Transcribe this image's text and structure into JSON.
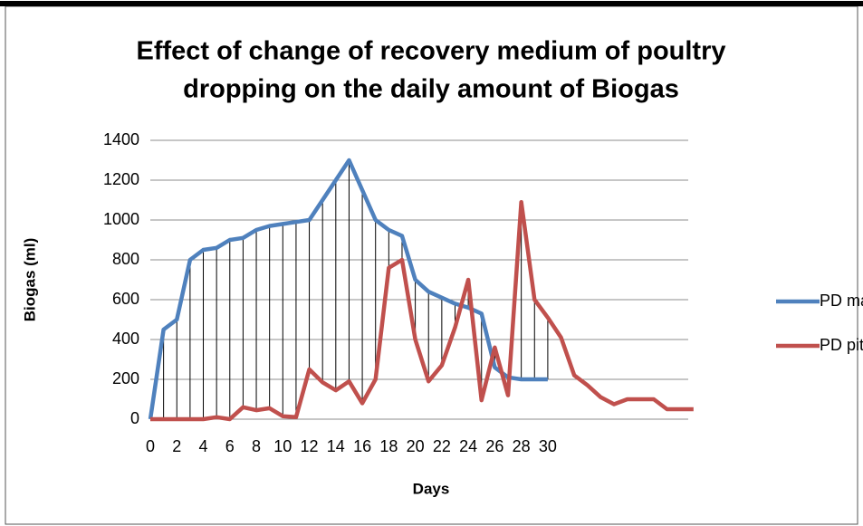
{
  "chart_data": {
    "type": "line",
    "title": [
      "Effect of change of recovery medium of poultry",
      "dropping on the daily amount of Biogas"
    ],
    "x_label": "Days",
    "y_label": "Biogas (ml)",
    "categories": [
      0,
      null,
      2,
      null,
      4,
      null,
      6,
      null,
      8,
      null,
      10,
      null,
      12,
      null,
      14,
      null,
      16,
      null,
      18,
      null,
      20,
      null,
      22,
      null,
      24,
      null,
      26,
      null,
      28,
      null,
      30,
      null,
      null,
      null,
      null,
      null,
      null,
      null,
      null,
      null,
      null,
      null
    ],
    "series": [
      {
        "name": "PD mat",
        "color": "#4f81bd",
        "values": [
          0,
          450,
          500,
          800,
          850,
          860,
          900,
          910,
          950,
          970,
          980,
          990,
          1000,
          1100,
          1200,
          1300,
          1150,
          1000,
          950,
          920,
          700,
          640,
          610,
          580,
          560,
          530,
          260,
          210,
          200,
          200,
          200,
          null,
          null,
          null,
          null,
          null,
          null,
          null,
          null,
          null,
          null,
          null
        ]
      },
      {
        "name": "PD pit",
        "color": "#c0504d",
        "values": [
          0,
          0,
          0,
          0,
          0,
          10,
          0,
          60,
          45,
          55,
          15,
          10,
          250,
          185,
          145,
          190,
          80,
          200,
          760,
          800,
          400,
          190,
          270,
          460,
          700,
          95,
          360,
          120,
          1090,
          600,
          510,
          410,
          220,
          170,
          110,
          75,
          100,
          100,
          100,
          50,
          50,
          50
        ]
      }
    ],
    "ylim": [
      0,
      1400
    ],
    "yticks": [
      0,
      200,
      400,
      600,
      800,
      1000,
      1200,
      1400
    ],
    "grid": true,
    "drop_lines": true,
    "legend": "right"
  }
}
